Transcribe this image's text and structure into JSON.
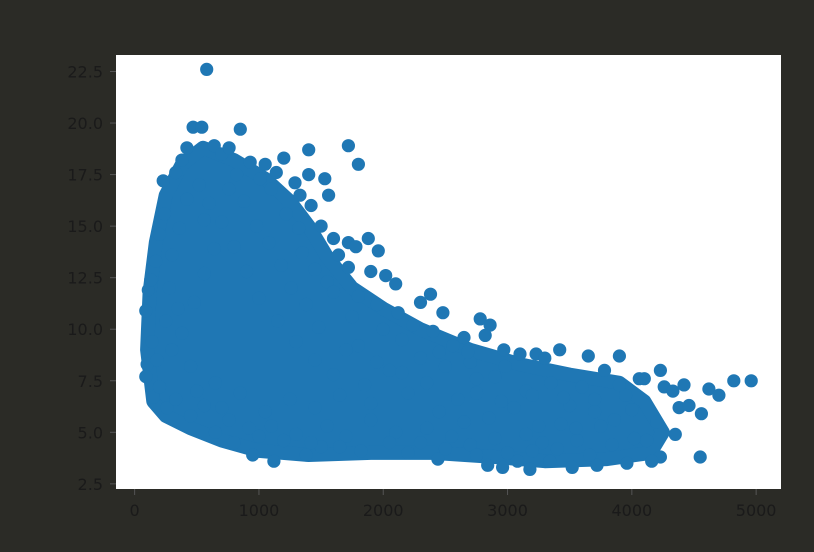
{
  "colors": {
    "background": "#2b2b26",
    "plot_area": "#ffffff",
    "marker": "#1f77b4",
    "tick_text": "#1a1a1a"
  },
  "chart_data": {
    "type": "scatter",
    "title": "",
    "xlabel": "",
    "ylabel": "",
    "xlim": [
      -150,
      5200
    ],
    "ylim": [
      2.25,
      23.3
    ],
    "grid": false,
    "legend": "none",
    "x_ticks": [
      0,
      1000,
      2000,
      3000,
      4000,
      5000
    ],
    "x_tick_labels": [
      "0",
      "1000",
      "2000",
      "3000",
      "4000",
      "5000"
    ],
    "y_ticks": [
      2.5,
      5.0,
      7.5,
      10.0,
      12.5,
      15.0,
      17.5,
      20.0,
      22.5
    ],
    "y_tick_labels": [
      "2.5",
      "5.0",
      "7.5",
      "10.0",
      "12.5",
      "15.0",
      "17.5",
      "20.0",
      "22.5"
    ],
    "series": [
      {
        "color": "#1f77b4",
        "points": [
          [
            580,
            22.6
          ],
          [
            470,
            19.8
          ],
          [
            540,
            19.8
          ],
          [
            850,
            19.7
          ],
          [
            1720,
            18.9
          ],
          [
            1400,
            18.7
          ],
          [
            1800,
            18.0
          ],
          [
            1200,
            18.3
          ],
          [
            1050,
            18.0
          ],
          [
            1530,
            17.3
          ],
          [
            1560,
            16.5
          ],
          [
            1420,
            16.0
          ],
          [
            1500,
            15.0
          ],
          [
            1720,
            14.2
          ],
          [
            1780,
            14.0
          ],
          [
            1880,
            14.4
          ],
          [
            1960,
            13.8
          ],
          [
            1900,
            12.8
          ],
          [
            2020,
            12.6
          ],
          [
            2100,
            12.2
          ],
          [
            2380,
            11.7
          ],
          [
            2300,
            11.3
          ],
          [
            2480,
            10.8
          ],
          [
            2780,
            10.5
          ],
          [
            2860,
            10.2
          ],
          [
            2820,
            9.7
          ],
          [
            2650,
            9.6
          ],
          [
            2970,
            9.0
          ],
          [
            3100,
            8.8
          ],
          [
            3230,
            8.8
          ],
          [
            3300,
            8.6
          ],
          [
            3420,
            9.0
          ],
          [
            3650,
            8.7
          ],
          [
            3900,
            8.7
          ],
          [
            3780,
            8.0
          ],
          [
            4060,
            7.6
          ],
          [
            4100,
            7.6
          ],
          [
            4230,
            8.0
          ],
          [
            4260,
            7.2
          ],
          [
            4330,
            7.0
          ],
          [
            4420,
            7.3
          ],
          [
            4620,
            7.1
          ],
          [
            4700,
            6.8
          ],
          [
            4820,
            7.5
          ],
          [
            4960,
            7.5
          ],
          [
            4380,
            6.2
          ],
          [
            4460,
            6.3
          ],
          [
            4200,
            5.5
          ],
          [
            4350,
            4.9
          ],
          [
            4560,
            5.9
          ],
          [
            4120,
            4.6
          ],
          [
            4550,
            3.8
          ],
          [
            4230,
            3.8
          ],
          [
            4160,
            3.6
          ],
          [
            3960,
            3.5
          ],
          [
            3720,
            3.4
          ],
          [
            3520,
            3.3
          ],
          [
            3180,
            3.2
          ],
          [
            2960,
            3.3
          ],
          [
            2840,
            3.4
          ],
          [
            3080,
            3.6
          ],
          [
            2440,
            3.7
          ],
          [
            1120,
            3.6
          ],
          [
            950,
            3.9
          ],
          [
            1380,
            3.9
          ],
          [
            1820,
            4.1
          ],
          [
            2200,
            4.0
          ],
          [
            3340,
            3.6
          ],
          [
            3660,
            3.9
          ],
          [
            3840,
            4.4
          ],
          [
            4020,
            4.7
          ],
          [
            3560,
            4.6
          ],
          [
            3280,
            4.5
          ],
          [
            2700,
            4.4
          ],
          [
            2550,
            4.8
          ],
          [
            3430,
            5.4
          ],
          [
            3860,
            5.6
          ],
          [
            3700,
            6.0
          ],
          [
            3500,
            6.3
          ],
          [
            3950,
            6.8
          ],
          [
            3600,
            7.2
          ],
          [
            3350,
            7.4
          ],
          [
            3150,
            7.0
          ],
          [
            2900,
            7.7
          ],
          [
            2700,
            8.4
          ],
          [
            2500,
            8.2
          ],
          [
            2300,
            8.6
          ],
          [
            2600,
            6.6
          ],
          [
            2850,
            5.7
          ],
          [
            3050,
            6.2
          ],
          [
            3250,
            5.3
          ],
          [
            3150,
            4.9
          ],
          [
            2900,
            4.7
          ],
          [
            2350,
            5.2
          ],
          [
            2100,
            5.0
          ],
          [
            1900,
            5.6
          ],
          [
            1700,
            4.8
          ],
          [
            1500,
            4.3
          ],
          [
            1300,
            4.9
          ],
          [
            1100,
            5.3
          ],
          [
            800,
            4.5
          ],
          [
            650,
            5.0
          ],
          [
            450,
            5.8
          ],
          [
            260,
            6.2
          ],
          [
            150,
            6.7
          ],
          [
            90,
            7.7
          ],
          [
            100,
            8.3
          ],
          [
            140,
            9.4
          ],
          [
            90,
            10.9
          ],
          [
            110,
            11.9
          ],
          [
            130,
            12.4
          ],
          [
            170,
            13.3
          ],
          [
            200,
            14.6
          ],
          [
            240,
            15.6
          ],
          [
            230,
            17.2
          ],
          [
            330,
            17.6
          ],
          [
            380,
            18.2
          ],
          [
            420,
            18.8
          ],
          [
            640,
            18.9
          ],
          [
            700,
            18.5
          ],
          [
            760,
            18.8
          ],
          [
            930,
            18.1
          ],
          [
            1010,
            17.3
          ],
          [
            1140,
            17.6
          ],
          [
            1290,
            17.1
          ],
          [
            1330,
            16.5
          ],
          [
            1400,
            17.5
          ],
          [
            1220,
            15.6
          ],
          [
            1320,
            14.9
          ],
          [
            1600,
            14.4
          ],
          [
            1640,
            13.6
          ],
          [
            1720,
            13.0
          ],
          [
            1550,
            12.3
          ],
          [
            1800,
            11.6
          ],
          [
            1950,
            11.2
          ],
          [
            2120,
            10.8
          ],
          [
            2240,
            10.2
          ],
          [
            2400,
            9.9
          ],
          [
            2150,
            9.5
          ],
          [
            2560,
            9.2
          ],
          [
            2680,
            8.9
          ],
          [
            2750,
            7.6
          ],
          [
            2980,
            8.2
          ],
          [
            2050,
            8.0
          ],
          [
            1850,
            7.3
          ],
          [
            1650,
            6.8
          ],
          [
            1450,
            6.2
          ],
          [
            1250,
            6.6
          ],
          [
            1050,
            6.0
          ],
          [
            850,
            6.9
          ],
          [
            650,
            7.4
          ],
          [
            450,
            8.2
          ],
          [
            300,
            9.0
          ],
          [
            250,
            10.4
          ],
          [
            280,
            12.0
          ],
          [
            300,
            13.6
          ],
          [
            360,
            14.9
          ],
          [
            420,
            16.3
          ],
          [
            520,
            17.0
          ],
          [
            600,
            16.1
          ],
          [
            700,
            15.2
          ],
          [
            800,
            14.0
          ],
          [
            900,
            12.8
          ],
          [
            1000,
            11.5
          ],
          [
            1150,
            10.4
          ],
          [
            1300,
            9.4
          ],
          [
            1450,
            8.5
          ],
          [
            1600,
            7.8
          ],
          [
            1800,
            9.2
          ],
          [
            2000,
            10.0
          ],
          [
            1900,
            6.4
          ],
          [
            2200,
            6.9
          ],
          [
            2450,
            6.0
          ],
          [
            2650,
            5.5
          ],
          [
            2050,
            4.5
          ],
          [
            1550,
            5.3
          ],
          [
            1000,
            4.8
          ],
          [
            700,
            6.2
          ],
          [
            500,
            7.0
          ],
          [
            380,
            9.8
          ],
          [
            480,
            11.3
          ],
          [
            560,
            12.7
          ],
          [
            640,
            13.9
          ],
          [
            760,
            16.8
          ],
          [
            880,
            16.2
          ],
          [
            980,
            15.0
          ],
          [
            1080,
            14.2
          ],
          [
            1180,
            13.1
          ],
          [
            1260,
            12.0
          ],
          [
            1380,
            11.2
          ],
          [
            1480,
            10.1
          ],
          [
            1700,
            9.0
          ],
          [
            1750,
            10.6
          ],
          [
            1600,
            11.8
          ],
          [
            1450,
            12.9
          ],
          [
            1350,
            13.7
          ],
          [
            1100,
            16.8
          ],
          [
            820,
            17.5
          ],
          [
            560,
            15.3
          ],
          [
            350,
            11.0
          ],
          [
            180,
            8.5
          ],
          [
            200,
            7.2
          ],
          [
            330,
            6.6
          ],
          [
            560,
            6.3
          ],
          [
            760,
            5.6
          ],
          [
            920,
            5.2
          ],
          [
            1200,
            4.6
          ],
          [
            1420,
            4.5
          ],
          [
            1650,
            4.3
          ],
          [
            2300,
            4.5
          ],
          [
            2500,
            4.2
          ],
          [
            2750,
            3.9
          ],
          [
            3000,
            4.0
          ],
          [
            3200,
            4.1
          ],
          [
            3400,
            4.2
          ],
          [
            3550,
            5.2
          ],
          [
            3750,
            5.3
          ],
          [
            3200,
            6.8
          ],
          [
            3450,
            6.7
          ],
          [
            3700,
            6.6
          ],
          [
            3900,
            7.3
          ],
          [
            4000,
            6.1
          ],
          [
            2950,
            6.5
          ],
          [
            2750,
            6.9
          ],
          [
            2350,
            7.4
          ],
          [
            2150,
            7.9
          ],
          [
            1950,
            8.4
          ],
          [
            2450,
            8.9
          ]
        ]
      }
    ]
  }
}
